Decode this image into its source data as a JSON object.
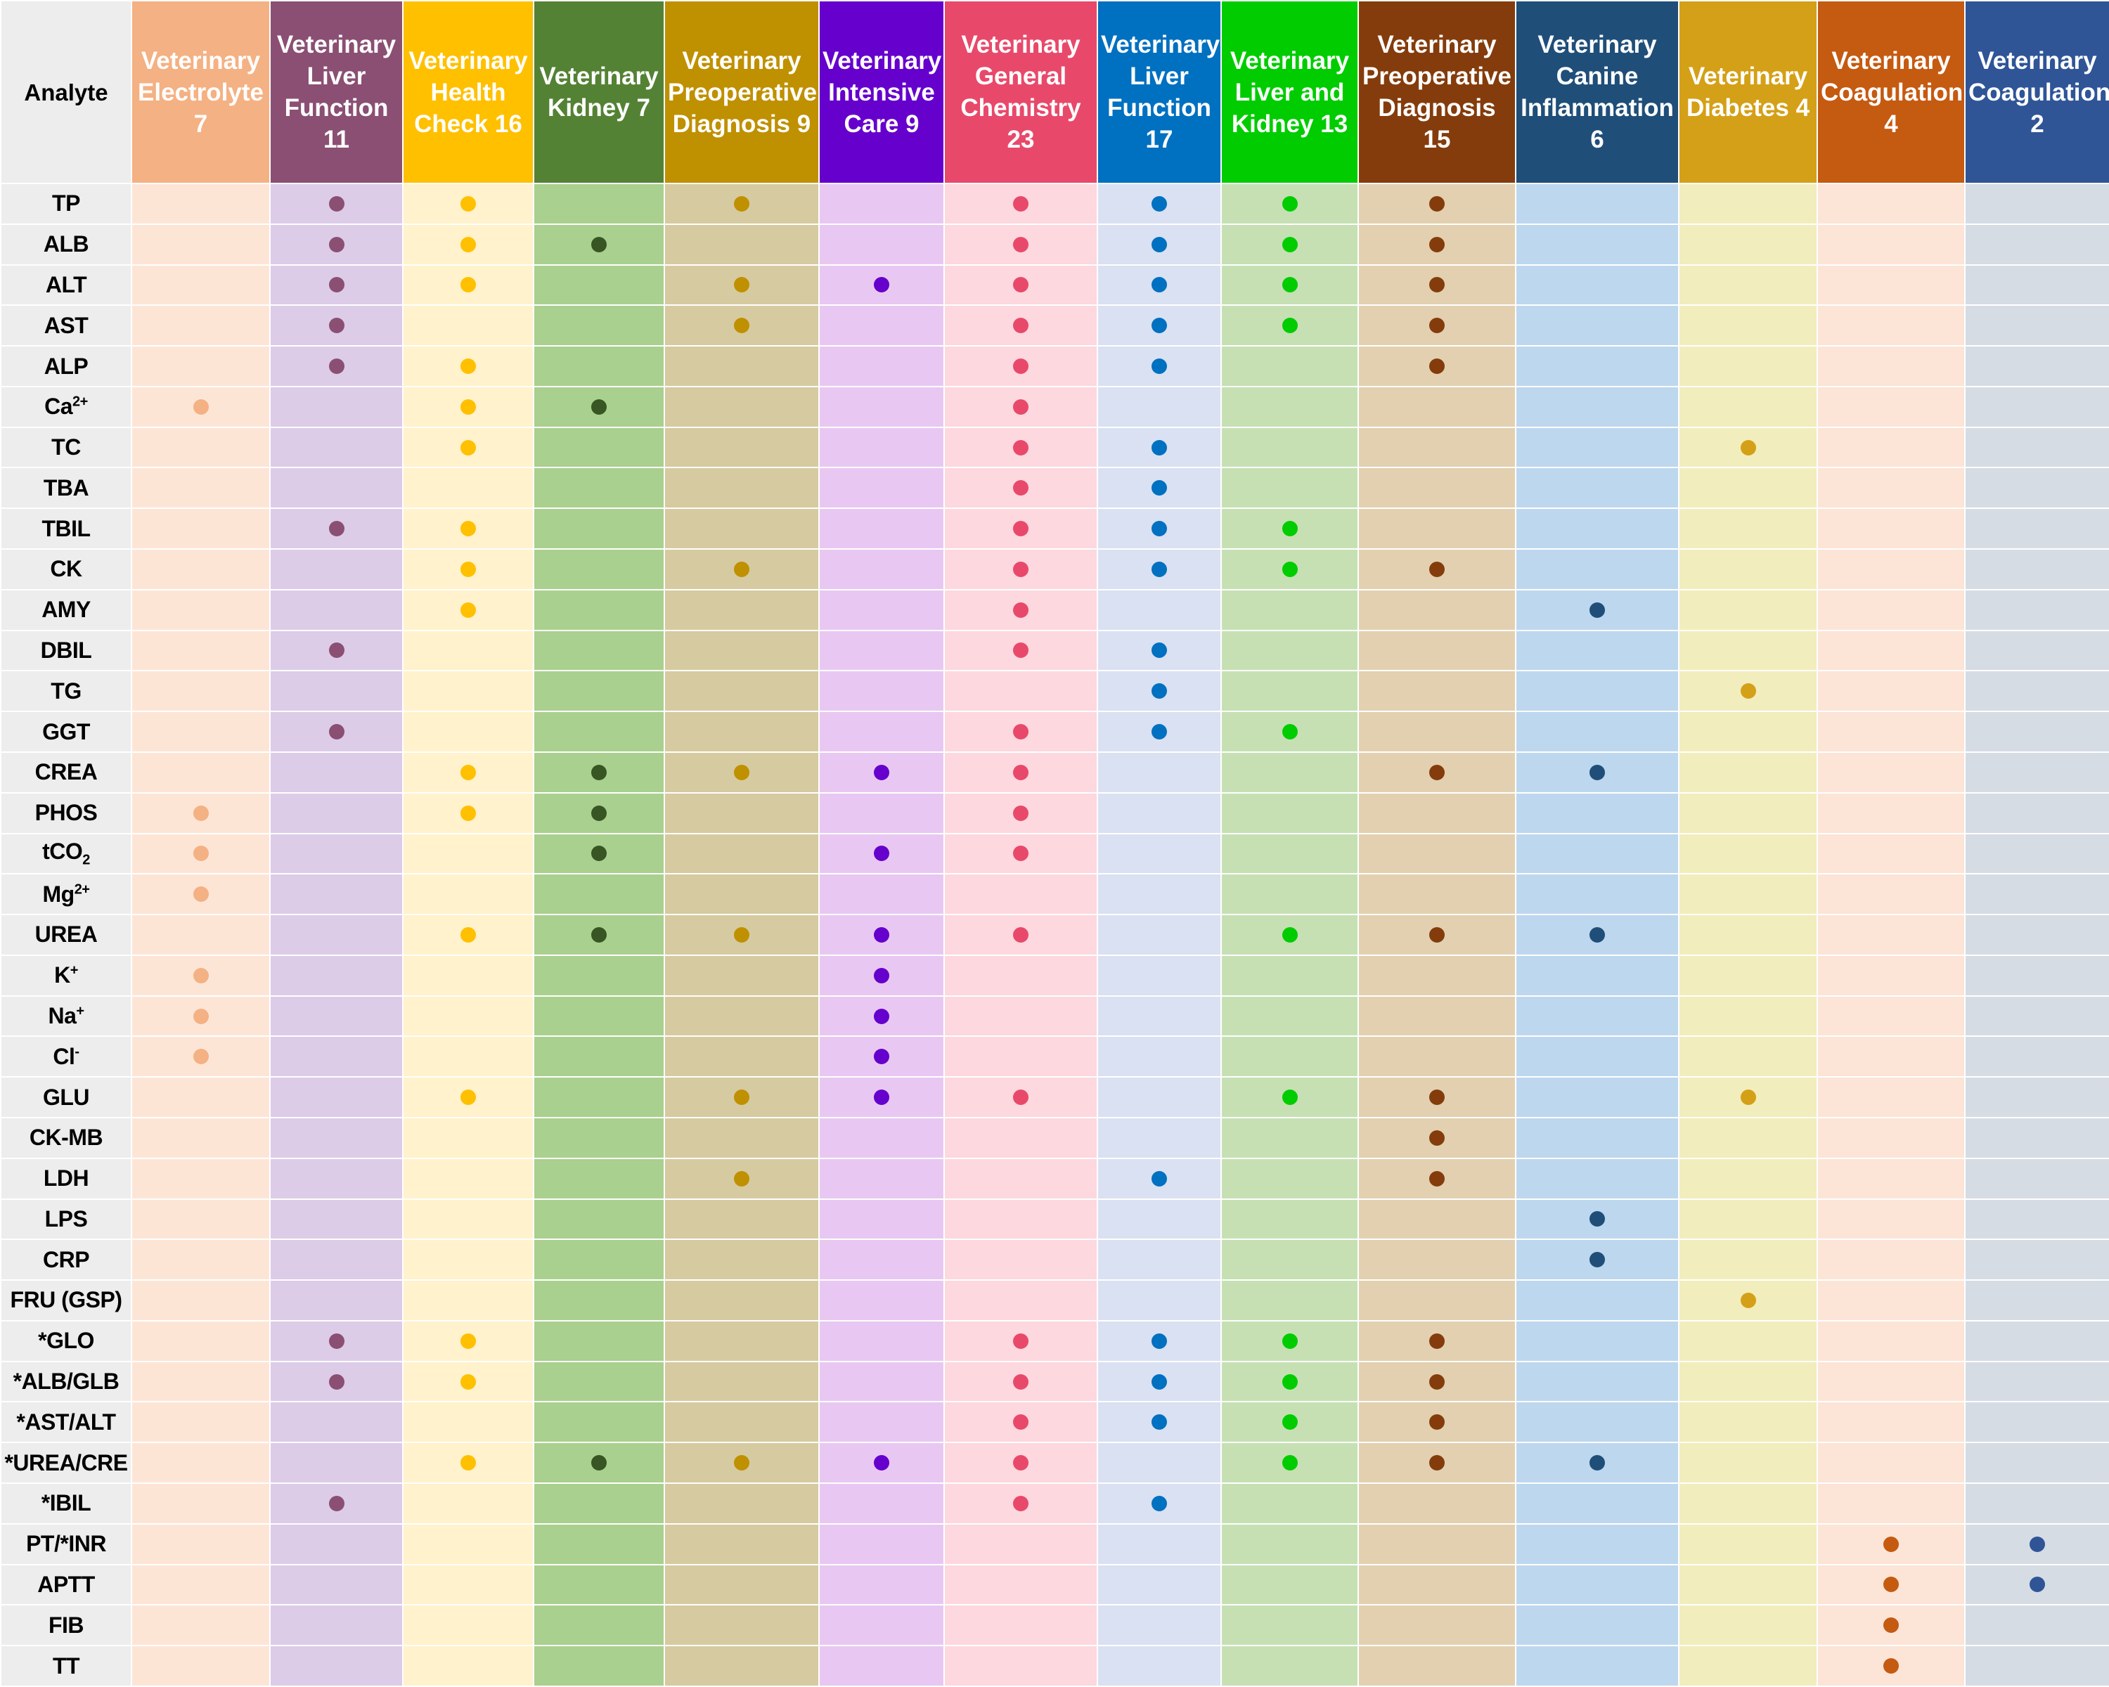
{
  "table": {
    "corner": "Analyte",
    "columns": [
      {
        "name": "Veterinary Electrolyte 7",
        "header": "#F4B183",
        "fill": "#FDE5D6",
        "dot": "#F4B183"
      },
      {
        "name": "Veterinary Liver Function 11",
        "header": "#8B4F73",
        "fill": "#DCCCE8",
        "dot": "#8B4F73"
      },
      {
        "name": "Veterinary Health Check 16",
        "header": "#FFC000",
        "fill": "#FFF2CC",
        "dot": "#FFC000"
      },
      {
        "name": "Veterinary Kidney 7",
        "header": "#548235",
        "fill": "#A9D08E",
        "dot": "#375623"
      },
      {
        "name": "Veterinary Preoperative Diagnosis 9",
        "header": "#BF9000",
        "fill": "#D6CAA0",
        "dot": "#BF9000"
      },
      {
        "name": "Veterinary Intensive Care 9",
        "header": "#6600CC",
        "fill": "#E8C8F2",
        "dot": "#6600CC"
      },
      {
        "name": "Veterinary General Chemistry 23",
        "header": "#E8496B",
        "fill": "#FDD8DE",
        "dot": "#E8496B"
      },
      {
        "name": "Veterinary Liver Function 17",
        "header": "#0070C0",
        "fill": "#D9E1F2",
        "dot": "#0070C0"
      },
      {
        "name": "Veterinary Liver and Kidney 13",
        "header": "#00CC00",
        "fill": "#C6E0B4",
        "dot": "#00CC00"
      },
      {
        "name": "Veterinary Preoperative Diagnosis 15",
        "header": "#843C0C",
        "fill": "#E2D0B0",
        "dot": "#843C0C"
      },
      {
        "name": "Veterinary Canine Inflammation 6",
        "header": "#1F4E79",
        "fill": "#BDD7EE",
        "dot": "#1F4E79"
      },
      {
        "name": "Veterinary Diabetes 4",
        "header": "#D4A017",
        "fill": "#F2EDBD",
        "dot": "#D4A017"
      },
      {
        "name": "Veterinary Coagulation 4",
        "header": "#C55A11",
        "fill": "#FCE4D6",
        "dot": "#C55A11"
      },
      {
        "name": "Veterinary Coagulation 2",
        "header": "#2F5597",
        "fill": "#D6DCE4",
        "dot": "#2F5597"
      }
    ],
    "rows": [
      {
        "analyte": {
          "text": "TP"
        },
        "cells": [
          0,
          1,
          1,
          0,
          1,
          0,
          1,
          1,
          1,
          1,
          0,
          0,
          0,
          0
        ]
      },
      {
        "analyte": {
          "text": "ALB"
        },
        "cells": [
          0,
          1,
          1,
          1,
          0,
          0,
          1,
          1,
          1,
          1,
          0,
          0,
          0,
          0
        ]
      },
      {
        "analyte": {
          "text": "ALT"
        },
        "cells": [
          0,
          1,
          1,
          0,
          1,
          1,
          1,
          1,
          1,
          1,
          0,
          0,
          0,
          0
        ]
      },
      {
        "analyte": {
          "text": "AST"
        },
        "cells": [
          0,
          1,
          0,
          0,
          1,
          0,
          1,
          1,
          1,
          1,
          0,
          0,
          0,
          0
        ]
      },
      {
        "analyte": {
          "text": "ALP"
        },
        "cells": [
          0,
          1,
          1,
          0,
          0,
          0,
          1,
          1,
          0,
          1,
          0,
          0,
          0,
          0
        ]
      },
      {
        "analyte": {
          "text": "Ca",
          "sup": "2+"
        },
        "cells": [
          1,
          0,
          1,
          1,
          0,
          0,
          1,
          0,
          0,
          0,
          0,
          0,
          0,
          0
        ]
      },
      {
        "analyte": {
          "text": "TC"
        },
        "cells": [
          0,
          0,
          1,
          0,
          0,
          0,
          1,
          1,
          0,
          0,
          0,
          1,
          0,
          0
        ]
      },
      {
        "analyte": {
          "text": "TBA"
        },
        "cells": [
          0,
          0,
          0,
          0,
          0,
          0,
          1,
          1,
          0,
          0,
          0,
          0,
          0,
          0
        ]
      },
      {
        "analyte": {
          "text": "TBIL"
        },
        "cells": [
          0,
          1,
          1,
          0,
          0,
          0,
          1,
          1,
          1,
          0,
          0,
          0,
          0,
          0
        ]
      },
      {
        "analyte": {
          "text": "CK"
        },
        "cells": [
          0,
          0,
          1,
          0,
          1,
          0,
          1,
          1,
          1,
          1,
          0,
          0,
          0,
          0
        ]
      },
      {
        "analyte": {
          "text": "AMY"
        },
        "cells": [
          0,
          0,
          1,
          0,
          0,
          0,
          1,
          0,
          0,
          0,
          1,
          0,
          0,
          0
        ]
      },
      {
        "analyte": {
          "text": "DBIL"
        },
        "cells": [
          0,
          1,
          0,
          0,
          0,
          0,
          1,
          1,
          0,
          0,
          0,
          0,
          0,
          0
        ]
      },
      {
        "analyte": {
          "text": "TG"
        },
        "cells": [
          0,
          0,
          0,
          0,
          0,
          0,
          0,
          1,
          0,
          0,
          0,
          1,
          0,
          0
        ]
      },
      {
        "analyte": {
          "text": "GGT"
        },
        "cells": [
          0,
          1,
          0,
          0,
          0,
          0,
          1,
          1,
          1,
          0,
          0,
          0,
          0,
          0
        ]
      },
      {
        "analyte": {
          "text": "CREA"
        },
        "cells": [
          0,
          0,
          1,
          1,
          1,
          1,
          1,
          0,
          0,
          1,
          1,
          0,
          0,
          0
        ]
      },
      {
        "analyte": {
          "text": "PHOS"
        },
        "cells": [
          1,
          0,
          1,
          1,
          0,
          0,
          1,
          0,
          0,
          0,
          0,
          0,
          0,
          0
        ]
      },
      {
        "analyte": {
          "text": "tCO",
          "sub": "2"
        },
        "cells": [
          1,
          0,
          0,
          1,
          0,
          1,
          1,
          0,
          0,
          0,
          0,
          0,
          0,
          0
        ]
      },
      {
        "analyte": {
          "text": "Mg",
          "sup": "2+"
        },
        "cells": [
          1,
          0,
          0,
          0,
          0,
          0,
          0,
          0,
          0,
          0,
          0,
          0,
          0,
          0
        ]
      },
      {
        "analyte": {
          "text": "UREA"
        },
        "cells": [
          0,
          0,
          1,
          1,
          1,
          1,
          1,
          0,
          1,
          1,
          1,
          0,
          0,
          0
        ]
      },
      {
        "analyte": {
          "text": "K",
          "sup": "+"
        },
        "cells": [
          1,
          0,
          0,
          0,
          0,
          1,
          0,
          0,
          0,
          0,
          0,
          0,
          0,
          0
        ]
      },
      {
        "analyte": {
          "text": "Na",
          "sup": "+"
        },
        "cells": [
          1,
          0,
          0,
          0,
          0,
          1,
          0,
          0,
          0,
          0,
          0,
          0,
          0,
          0
        ]
      },
      {
        "analyte": {
          "text": "Cl",
          "sup": "-"
        },
        "cells": [
          1,
          0,
          0,
          0,
          0,
          1,
          0,
          0,
          0,
          0,
          0,
          0,
          0,
          0
        ]
      },
      {
        "analyte": {
          "text": "GLU"
        },
        "cells": [
          0,
          0,
          1,
          0,
          1,
          1,
          1,
          0,
          1,
          1,
          0,
          1,
          0,
          0
        ]
      },
      {
        "analyte": {
          "text": "CK-MB"
        },
        "cells": [
          0,
          0,
          0,
          0,
          0,
          0,
          0,
          0,
          0,
          1,
          0,
          0,
          0,
          0
        ]
      },
      {
        "analyte": {
          "text": "LDH"
        },
        "cells": [
          0,
          0,
          0,
          0,
          1,
          0,
          0,
          1,
          0,
          1,
          0,
          0,
          0,
          0
        ]
      },
      {
        "analyte": {
          "text": "LPS"
        },
        "cells": [
          0,
          0,
          0,
          0,
          0,
          0,
          0,
          0,
          0,
          0,
          1,
          0,
          0,
          0
        ]
      },
      {
        "analyte": {
          "text": "CRP"
        },
        "cells": [
          0,
          0,
          0,
          0,
          0,
          0,
          0,
          0,
          0,
          0,
          1,
          0,
          0,
          0
        ]
      },
      {
        "analyte": {
          "text": "FRU (GSP)"
        },
        "cells": [
          0,
          0,
          0,
          0,
          0,
          0,
          0,
          0,
          0,
          0,
          0,
          1,
          0,
          0
        ]
      },
      {
        "analyte": {
          "text": "*GLO"
        },
        "cells": [
          0,
          1,
          1,
          0,
          0,
          0,
          1,
          1,
          1,
          1,
          0,
          0,
          0,
          0
        ]
      },
      {
        "analyte": {
          "text": "*ALB/GLB"
        },
        "cells": [
          0,
          1,
          1,
          0,
          0,
          0,
          1,
          1,
          1,
          1,
          0,
          0,
          0,
          0
        ]
      },
      {
        "analyte": {
          "text": "*AST/ALT"
        },
        "cells": [
          0,
          0,
          0,
          0,
          0,
          0,
          1,
          1,
          1,
          1,
          0,
          0,
          0,
          0
        ]
      },
      {
        "analyte": {
          "text": "*UREA/CRE"
        },
        "cells": [
          0,
          0,
          1,
          1,
          1,
          1,
          1,
          0,
          1,
          1,
          1,
          0,
          0,
          0
        ]
      },
      {
        "analyte": {
          "text": "*IBIL"
        },
        "cells": [
          0,
          1,
          0,
          0,
          0,
          0,
          1,
          1,
          0,
          0,
          0,
          0,
          0,
          0
        ]
      },
      {
        "analyte": {
          "text": "PT/*INR"
        },
        "cells": [
          0,
          0,
          0,
          0,
          0,
          0,
          0,
          0,
          0,
          0,
          0,
          0,
          1,
          1
        ]
      },
      {
        "analyte": {
          "text": "APTT"
        },
        "cells": [
          0,
          0,
          0,
          0,
          0,
          0,
          0,
          0,
          0,
          0,
          0,
          0,
          1,
          1
        ]
      },
      {
        "analyte": {
          "text": "FIB"
        },
        "cells": [
          0,
          0,
          0,
          0,
          0,
          0,
          0,
          0,
          0,
          0,
          0,
          0,
          1,
          0
        ]
      },
      {
        "analyte": {
          "text": "TT"
        },
        "cells": [
          0,
          0,
          0,
          0,
          0,
          0,
          0,
          0,
          0,
          0,
          0,
          0,
          1,
          0
        ]
      }
    ]
  }
}
